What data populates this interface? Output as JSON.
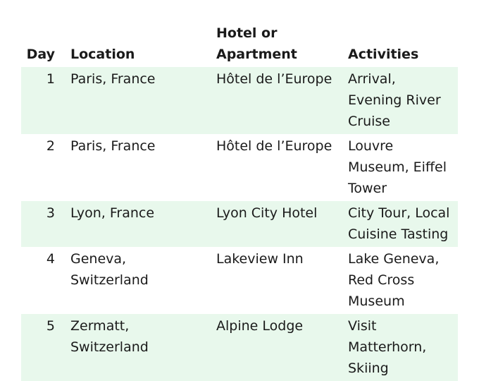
{
  "headers": [
    "Day",
    "Location",
    "Hotel or Apartment",
    "Activities"
  ],
  "rows": [
    {
      "day": "1",
      "location": "Paris, France",
      "hotel": "Hôtel de l’Europe",
      "activities": "Arrival, Evening River Cruise"
    },
    {
      "day": "2",
      "location": "Paris, France",
      "hotel": "Hôtel de l’Europe",
      "activities": "Louvre Museum, Eiffel Tower"
    },
    {
      "day": "3",
      "location": "Lyon, France",
      "hotel": "Lyon City Hotel",
      "activities": "City Tour, Local Cuisine Tasting"
    },
    {
      "day": "4",
      "location": "Geneva, Switzerland",
      "hotel": "Lakeview Inn",
      "activities": "Lake Geneva, Red Cross Museum"
    },
    {
      "day": "5",
      "location": "Zermatt, Switzerland",
      "hotel": "Alpine Lodge",
      "activities": "Visit Matterhorn, Skiing"
    }
  ],
  "colors": {
    "stripe": "#e8f8ec"
  }
}
